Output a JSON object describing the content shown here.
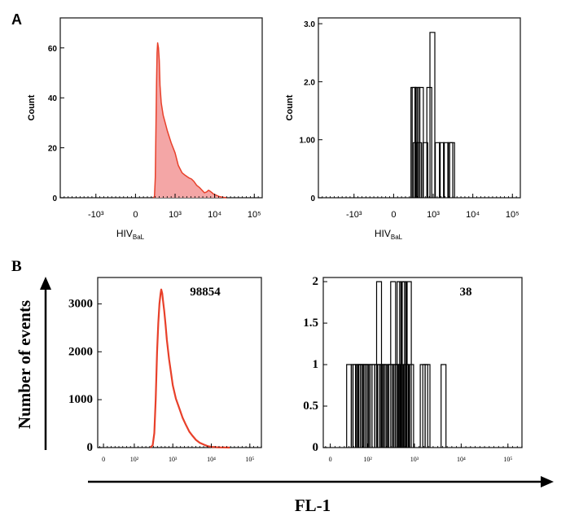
{
  "panel_labels": {
    "a": "A",
    "b": "B"
  },
  "common_axes": {
    "y_label": "Number of events",
    "x_label": "FL-1"
  },
  "colors": {
    "red_line": "#e8402a",
    "red_fill": "#f4a6a6",
    "black": "#000000",
    "frame": "#222222"
  },
  "chart_data": [
    {
      "type": "area",
      "panel": "A",
      "xscale": "biexponential",
      "xticks": [
        "-10³",
        "0",
        "10³",
        "10⁴",
        "10⁵"
      ],
      "xlabel_main": "HIV",
      "xlabel_sub": "BaL",
      "ylabel": "Count",
      "yticks": [
        "0",
        "20",
        "40",
        "60"
      ],
      "ylim": [
        0,
        72
      ],
      "color": "#e8402a",
      "fill": "#f4a6a6",
      "points": [
        [
          450,
          0
        ],
        [
          480,
          0.5
        ],
        [
          500,
          8
        ],
        [
          515,
          25
        ],
        [
          530,
          45
        ],
        [
          545,
          58
        ],
        [
          560,
          62
        ],
        [
          580,
          60
        ],
        [
          600,
          55
        ],
        [
          620,
          45
        ],
        [
          650,
          38
        ],
        [
          700,
          33
        ],
        [
          750,
          30
        ],
        [
          800,
          27
        ],
        [
          900,
          22
        ],
        [
          1000,
          18
        ],
        [
          1200,
          13
        ],
        [
          1500,
          10
        ],
        [
          1800,
          9
        ],
        [
          2200,
          8
        ],
        [
          2600,
          7.5
        ],
        [
          3000,
          6.5
        ],
        [
          3500,
          5
        ],
        [
          4200,
          4
        ],
        [
          4800,
          3
        ],
        [
          5500,
          2
        ],
        [
          6200,
          2.3
        ],
        [
          7000,
          3
        ],
        [
          7800,
          2.5
        ],
        [
          8600,
          2
        ],
        [
          9500,
          1.4
        ],
        [
          11000,
          1
        ],
        [
          13000,
          0.5
        ],
        [
          16000,
          0.2
        ],
        [
          20000,
          0
        ]
      ]
    },
    {
      "type": "bar",
      "panel": "A",
      "xscale": "biexponential",
      "xticks": [
        "-10³",
        "0",
        "10³",
        "10⁴",
        "10⁵"
      ],
      "xlabel_main": "HIV",
      "xlabel_sub": "BaL",
      "ylabel": "Count",
      "yticks": [
        "0",
        "1.00",
        "2.0",
        "3.0"
      ],
      "ylim": [
        0,
        3.1
      ],
      "color": "#000000",
      "spikes": [
        [
          500,
          1.9
        ],
        [
          530,
          1.9
        ],
        [
          560,
          0.95
        ],
        [
          600,
          1.9
        ],
        [
          640,
          0.95
        ],
        [
          690,
          1.9
        ],
        [
          800,
          0.95
        ],
        [
          900,
          1.9
        ],
        [
          980,
          2.85
        ],
        [
          1300,
          0.95
        ],
        [
          1650,
          0.95
        ],
        [
          2100,
          0.95
        ],
        [
          2700,
          0.95
        ],
        [
          3000,
          0.95
        ]
      ]
    },
    {
      "type": "line",
      "panel": "B",
      "xscale": "log",
      "xticks": [
        "0",
        "10²",
        "10³",
        "10⁴",
        "10⁵"
      ],
      "yticks": [
        "0",
        "1000",
        "2000",
        "3000"
      ],
      "ylim": [
        0,
        3550
      ],
      "annotation": "98854",
      "color": "#e8402a",
      "points": [
        [
          260,
          0
        ],
        [
          300,
          50
        ],
        [
          330,
          300
        ],
        [
          360,
          1000
        ],
        [
          390,
          2000
        ],
        [
          420,
          2600
        ],
        [
          450,
          3000
        ],
        [
          480,
          3200
        ],
        [
          500,
          3300
        ],
        [
          530,
          3220
        ],
        [
          560,
          3050
        ],
        [
          600,
          2850
        ],
        [
          650,
          2550
        ],
        [
          700,
          2250
        ],
        [
          800,
          1850
        ],
        [
          900,
          1550
        ],
        [
          1000,
          1300
        ],
        [
          1200,
          1020
        ],
        [
          1500,
          800
        ],
        [
          1800,
          620
        ],
        [
          2200,
          470
        ],
        [
          2700,
          330
        ],
        [
          3300,
          240
        ],
        [
          4000,
          160
        ],
        [
          5000,
          100
        ],
        [
          6500,
          60
        ],
        [
          8000,
          30
        ],
        [
          10000,
          15
        ],
        [
          15000,
          5
        ],
        [
          30000,
          0
        ]
      ]
    },
    {
      "type": "bar",
      "panel": "B",
      "xscale": "log",
      "xticks": [
        "0",
        "10²",
        "10³",
        "10⁴",
        "10⁵"
      ],
      "yticks": [
        "0",
        "0.5",
        "1",
        "1.5",
        "2"
      ],
      "ylim": [
        0,
        2.05
      ],
      "annotation": "38",
      "color": "#000000",
      "spikes": [
        [
          40,
          1
        ],
        [
          50,
          1
        ],
        [
          55,
          1
        ],
        [
          62,
          1
        ],
        [
          68,
          1
        ],
        [
          72,
          1
        ],
        [
          78,
          1
        ],
        [
          85,
          1
        ],
        [
          92,
          1
        ],
        [
          100,
          1
        ],
        [
          110,
          1
        ],
        [
          125,
          1
        ],
        [
          140,
          1
        ],
        [
          160,
          1
        ],
        [
          175,
          2
        ],
        [
          185,
          1
        ],
        [
          210,
          1
        ],
        [
          225,
          1
        ],
        [
          250,
          1
        ],
        [
          300,
          1
        ],
        [
          320,
          1
        ],
        [
          350,
          2
        ],
        [
          380,
          1
        ],
        [
          410,
          1
        ],
        [
          440,
          1
        ],
        [
          480,
          2
        ],
        [
          510,
          1
        ],
        [
          545,
          2
        ],
        [
          580,
          2
        ],
        [
          620,
          2
        ],
        [
          660,
          1
        ],
        [
          700,
          1
        ],
        [
          760,
          2
        ],
        [
          850,
          1
        ],
        [
          1500,
          1
        ],
        [
          1700,
          1
        ],
        [
          1900,
          1
        ],
        [
          4200,
          1
        ]
      ]
    }
  ]
}
